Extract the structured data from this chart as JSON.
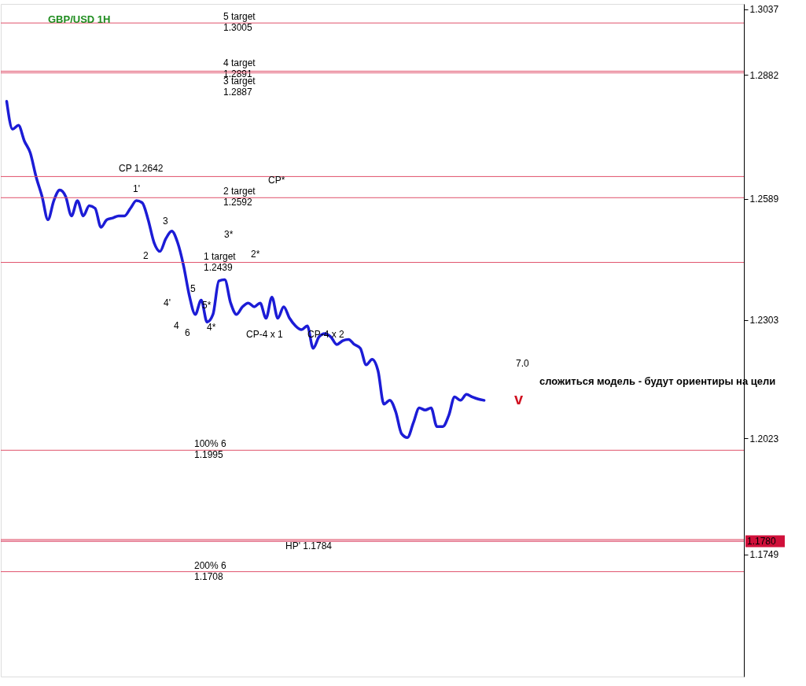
{
  "chart_data": {
    "type": "line",
    "title": "GBP/USD 1H",
    "categories": [
      null,
      null,
      null,
      null,
      null,
      null,
      null,
      null,
      null,
      null,
      null,
      null,
      null,
      null,
      null,
      null,
      null,
      null,
      null,
      null,
      null,
      null,
      null,
      null,
      null,
      null,
      null,
      null,
      null,
      null,
      null,
      null,
      null,
      null,
      null,
      null,
      null,
      null,
      null,
      null,
      null,
      null,
      null,
      null,
      null,
      null,
      null,
      null,
      null,
      null,
      null,
      null,
      null,
      null,
      null,
      null,
      null,
      null,
      null,
      null,
      null,
      null,
      null,
      null,
      null,
      null,
      null,
      null,
      null,
      null,
      null,
      null,
      null,
      null,
      null,
      null,
      null,
      null,
      null,
      null,
      null,
      null
    ],
    "series": [
      {
        "color": "#1c1cd6",
        "values": [
          1.282,
          1.2754,
          1.2763,
          1.2726,
          1.2698,
          1.2641,
          1.2595,
          1.254,
          1.2585,
          1.261,
          1.2595,
          1.2549,
          1.2585,
          1.2549,
          1.2573,
          1.2567,
          1.2522,
          1.254,
          1.2544,
          1.2549,
          1.2549,
          1.2567,
          1.2585,
          1.258,
          1.254,
          1.2486,
          1.2465,
          1.2495,
          1.2513,
          1.2486,
          1.2432,
          1.236,
          1.2316,
          1.235,
          1.2298,
          1.2316,
          1.2395,
          1.2398,
          1.2343,
          1.2316,
          1.2334,
          1.2343,
          1.2334,
          1.2343,
          1.2307,
          1.2357,
          1.2307,
          1.2334,
          1.2307,
          1.2289,
          1.228,
          1.2289,
          1.2236,
          1.2263,
          1.2271,
          1.2263,
          1.2245,
          1.2254,
          1.2257,
          1.2245,
          1.2236,
          1.2197,
          1.221,
          1.2183,
          1.2104,
          1.2113,
          1.2086,
          1.2034,
          1.2025,
          1.206,
          1.2095,
          1.209,
          1.2095,
          1.2051,
          1.2051,
          1.2077,
          1.2121,
          1.2113,
          1.2127,
          1.2121,
          1.2116,
          1.2113
        ]
      }
    ],
    "ylim": [
      1.146,
      1.305
    ],
    "yticks": [
      1.3037,
      1.2882,
      1.2589,
      1.2303,
      1.2023,
      1.1749
    ],
    "ref_lines": [
      {
        "axis": "y",
        "value": 1.3005,
        "label": "5 target\n1.3005",
        "color": "#e0506a"
      },
      {
        "axis": "y",
        "value": 1.2891,
        "label": "4 target\n1.2891",
        "color": "#e0506a"
      },
      {
        "axis": "y",
        "value": 1.2887,
        "label": "3 target\n1.2887",
        "color": "#e0506a"
      },
      {
        "axis": "y",
        "value": 1.2642,
        "label": "CP 1.2642",
        "color": "#e0506a"
      },
      {
        "axis": "y",
        "value": 1.2592,
        "label": "2 target\n1.2592",
        "color": "#e0506a"
      },
      {
        "axis": "y",
        "value": 1.2439,
        "label": "1 target\n1.2439",
        "color": "#e0506a"
      },
      {
        "axis": "y",
        "value": 1.1995,
        "label": "100% 6\n1.1995",
        "color": "#e0506a"
      },
      {
        "axis": "y",
        "value": 1.1784,
        "label": "HP' 1.1784",
        "color": "#e0506a"
      },
      {
        "axis": "y",
        "value": 1.178,
        "label": "1.1780",
        "color": "#d0103a"
      },
      {
        "axis": "y",
        "value": 1.1708,
        "label": "200% 6\n1.1708",
        "color": "#e0506a"
      }
    ],
    "annotations": [
      "сложиться модель - будут ориентиры на цели",
      "7.0",
      "v",
      "CP*",
      "1'",
      "2",
      "3",
      "3*",
      "2*",
      "4'",
      "4",
      "5",
      "6",
      "5*",
      "4*",
      "CP-4 x 1",
      "CP-4 x 2"
    ],
    "grid": false,
    "marker": "none",
    "line_style": "solid"
  }
}
